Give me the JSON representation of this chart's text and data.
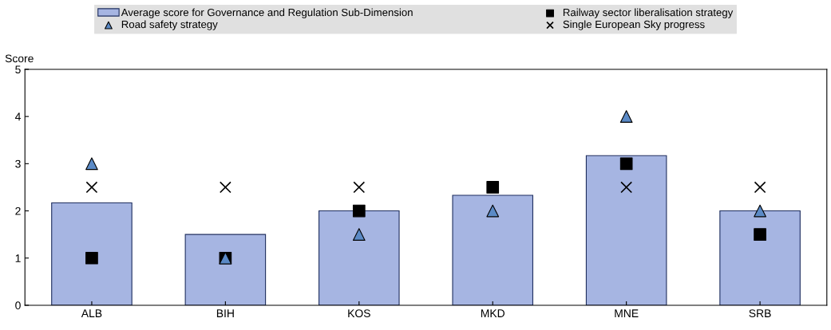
{
  "chart_data": {
    "type": "bar",
    "ylabel": "Score",
    "categories": [
      "ALB",
      "BIH",
      "KOS",
      "MKD",
      "MNE",
      "SRB"
    ],
    "series": [
      {
        "name": "Average score for Governance and Regulation Sub-Dimension",
        "color": "#a6b5e2",
        "values": [
          2.17,
          1.5,
          2.0,
          2.33,
          3.17,
          2.0
        ]
      },
      {
        "name": "Railway sector liberalisation strategy",
        "type": "scatter",
        "marker": "square",
        "color": "#000000",
        "values": [
          1,
          1,
          2,
          2.5,
          3,
          1.5
        ]
      },
      {
        "name": "Road safety strategy",
        "type": "scatter",
        "marker": "triangle",
        "color": "#5b8ac6",
        "values": [
          3,
          1,
          1.5,
          2,
          4,
          2
        ]
      },
      {
        "name": "Single European Sky progress",
        "type": "scatter",
        "marker": "cross",
        "color": "#000000",
        "values": [
          2.5,
          2.5,
          2.5,
          null,
          2.5,
          2.5
        ]
      }
    ],
    "ylim": [
      0,
      5
    ],
    "yticks": [
      0,
      1,
      2,
      3,
      4,
      5
    ],
    "grid": false,
    "legend": "top"
  }
}
